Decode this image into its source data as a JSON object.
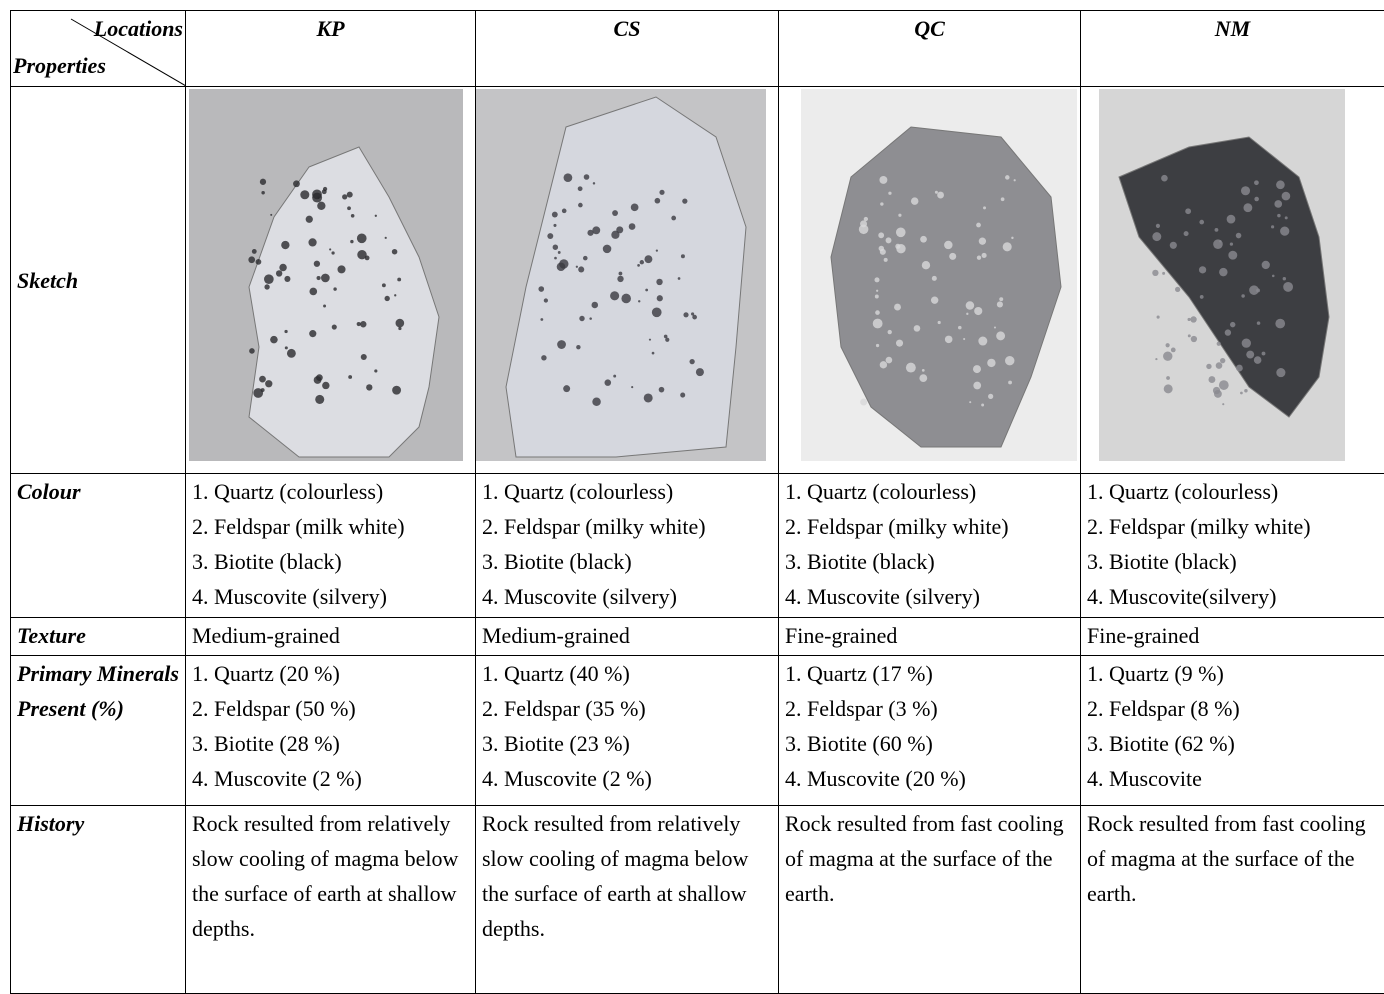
{
  "header": {
    "corner_top": "Locations",
    "corner_bottom": "Properties",
    "columns": [
      "KP",
      "CS",
      "QC",
      "NM"
    ]
  },
  "rows": [
    {
      "label": "Sketch"
    },
    {
      "label": "Colour",
      "cells": [
        [
          "1. Quartz (colourless)",
          "2. Feldspar (milk white)",
          "3. Biotite (black)",
          "4. Muscovite (silvery)"
        ],
        [
          "1. Quartz (colourless)",
          "2. Feldspar (milky white)",
          "3. Biotite (black)",
          "4. Muscovite (silvery)"
        ],
        [
          "1. Quartz (colourless)",
          "2. Feldspar (milky white)",
          "3. Biotite (black)",
          "4. Muscovite (silvery)"
        ],
        [
          "1. Quartz (colourless)",
          "2. Feldspar (milky white)",
          "3. Biotite (black)",
          "4. Muscovite(silvery)"
        ]
      ]
    },
    {
      "label": "Texture",
      "cells": [
        [
          "Medium-grained"
        ],
        [
          "Medium-grained"
        ],
        [
          "Fine-grained"
        ],
        [
          "Fine-grained"
        ]
      ]
    },
    {
      "label": "Primary Minerals Present (%)",
      "cells": [
        [
          "1. Quartz (20 %)",
          "2. Feldspar (50 %)",
          "3. Biotite (28 %)",
          "4. Muscovite (2 %)"
        ],
        [
          "1. Quartz (40 %)",
          "2. Feldspar (35 %)",
          "3. Biotite (23 %)",
          "4. Muscovite (2 %)"
        ],
        [
          "1. Quartz (17 %)",
          "2. Feldspar (3 %)",
          "3. Biotite (60 %)",
          "4. Muscovite (20 %)"
        ],
        [
          "1. Quartz (9 %)",
          "2. Feldspar (8 %)",
          "3. Biotite (62 %)",
          "4. Muscovite"
        ]
      ]
    },
    {
      "label": "History",
      "cells": [
        [
          "Rock resulted from relatively slow cooling of magma below the surface of earth at shallow depths."
        ],
        [
          "Rock resulted from relatively slow cooling of magma below the surface of earth at shallow depths."
        ],
        [
          "Rock resulted from fast cooling of magma at the surface of the earth."
        ],
        [
          "Rock resulted from fast cooling of magma at the surface of the earth."
        ]
      ]
    }
  ]
}
